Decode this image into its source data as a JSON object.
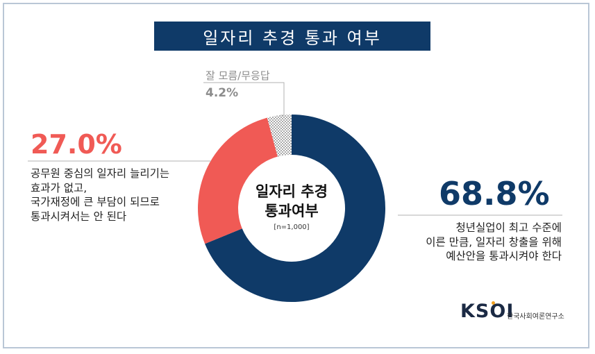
{
  "title": "일자리 추경 통과 여부",
  "chart_data": {
    "type": "pie",
    "variant": "donut",
    "center_title": [
      "일자리 추경",
      "통과여부"
    ],
    "center_note": "[n=1,000]",
    "slices": [
      {
        "value": 68.8,
        "label_value": "68.8%",
        "label_lines": [
          "청년실업이 최고 수준에",
          "이른 만큼, 일자리 창출을 위해",
          "예산안을 통과시켜야 한다"
        ],
        "color": "#0f3a68"
      },
      {
        "value": 27.0,
        "label_value": "27.0%",
        "label_lines": [
          "공무원 중심의 일자리 늘리기는",
          "효과가 없고,",
          "국가재정에 큰 부담이 되므로",
          "통과시켜서는 안 된다"
        ],
        "color": "#f05a55"
      },
      {
        "value": 4.2,
        "label_value": "4.2%",
        "label_lines": [
          "잘 모름/무응답"
        ],
        "color": "#9a9a9a",
        "pattern": "dotted"
      }
    ]
  },
  "logo": {
    "mark": "KSOI",
    "org": "한국사회여론연구소",
    "accent": "#f0a020"
  }
}
